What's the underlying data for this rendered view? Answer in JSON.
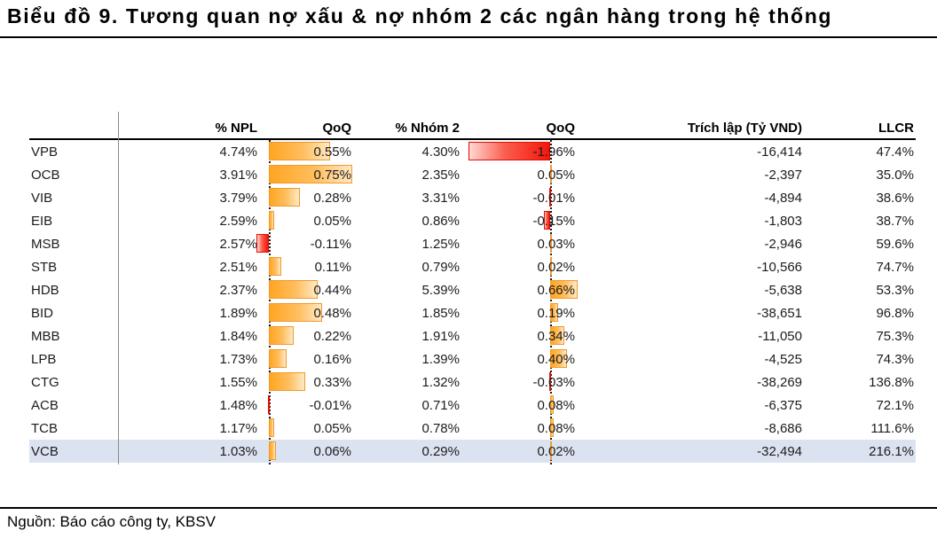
{
  "title": "Biểu đồ 9. Tương quan nợ xấu & nợ nhóm 2 các ngân hàng trong hệ thống",
  "source": "Nguồn: Báo cáo công ty, KBSV",
  "colors": {
    "positive_bar": "#FFA521",
    "positive_bar_border": "#F0992E",
    "negative_bar": "#F2170C",
    "negative_bar_border": "#E30D00",
    "highlight_row": "#DCE3F0"
  },
  "chart_data": {
    "type": "table",
    "title": "Biểu đồ 9. Tương quan nợ xấu & nợ nhóm 2 các ngân hàng trong hệ thống",
    "columns": [
      "",
      "% NPL",
      "QoQ",
      "% Nhóm 2",
      "QoQ",
      "Trích lập (Tỷ VND)",
      "LLCR"
    ],
    "notes": "QoQ columns contain in-cell data bars: positive = orange gradient bar extending right from dashed zero axis, negative = red gradient bar extending left. VCB row is highlighted.",
    "rows": [
      {
        "bank": "VPB",
        "npl": "4.74%",
        "npl_qoq": "0.55%",
        "npl_qoq_val": 0.55,
        "nhom2": "4.30%",
        "nhom2_qoq": "-1.96%",
        "nhom2_qoq_val": -1.96,
        "trich_lap": "-16,414",
        "llcr": "47.4%",
        "highlight": false
      },
      {
        "bank": "OCB",
        "npl": "3.91%",
        "npl_qoq": "0.75%",
        "npl_qoq_val": 0.75,
        "nhom2": "2.35%",
        "nhom2_qoq": "0.05%",
        "nhom2_qoq_val": 0.05,
        "trich_lap": "-2,397",
        "llcr": "35.0%",
        "highlight": false
      },
      {
        "bank": "VIB",
        "npl": "3.79%",
        "npl_qoq": "0.28%",
        "npl_qoq_val": 0.28,
        "nhom2": "3.31%",
        "nhom2_qoq": "-0.01%",
        "nhom2_qoq_val": -0.01,
        "trich_lap": "-4,894",
        "llcr": "38.6%",
        "highlight": false
      },
      {
        "bank": "EIB",
        "npl": "2.59%",
        "npl_qoq": "0.05%",
        "npl_qoq_val": 0.05,
        "nhom2": "0.86%",
        "nhom2_qoq": "-0.15%",
        "nhom2_qoq_val": -0.15,
        "trich_lap": "-1,803",
        "llcr": "38.7%",
        "highlight": false
      },
      {
        "bank": "MSB",
        "npl": "2.57%",
        "npl_qoq": "-0.11%",
        "npl_qoq_val": -0.11,
        "nhom2": "1.25%",
        "nhom2_qoq": "0.03%",
        "nhom2_qoq_val": 0.03,
        "trich_lap": "-2,946",
        "llcr": "59.6%",
        "highlight": false
      },
      {
        "bank": "STB",
        "npl": "2.51%",
        "npl_qoq": "0.11%",
        "npl_qoq_val": 0.11,
        "nhom2": "0.79%",
        "nhom2_qoq": "0.02%",
        "nhom2_qoq_val": 0.02,
        "trich_lap": "-10,566",
        "llcr": "74.7%",
        "highlight": false
      },
      {
        "bank": "HDB",
        "npl": "2.37%",
        "npl_qoq": "0.44%",
        "npl_qoq_val": 0.44,
        "nhom2": "5.39%",
        "nhom2_qoq": "0.66%",
        "nhom2_qoq_val": 0.66,
        "trich_lap": "-5,638",
        "llcr": "53.3%",
        "highlight": false
      },
      {
        "bank": "BID",
        "npl": "1.89%",
        "npl_qoq": "0.48%",
        "npl_qoq_val": 0.48,
        "nhom2": "1.85%",
        "nhom2_qoq": "0.19%",
        "nhom2_qoq_val": 0.19,
        "trich_lap": "-38,651",
        "llcr": "96.8%",
        "highlight": false
      },
      {
        "bank": "MBB",
        "npl": "1.84%",
        "npl_qoq": "0.22%",
        "npl_qoq_val": 0.22,
        "nhom2": "1.91%",
        "nhom2_qoq": "0.34%",
        "nhom2_qoq_val": 0.34,
        "trich_lap": "-11,050",
        "llcr": "75.3%",
        "highlight": false
      },
      {
        "bank": "LPB",
        "npl": "1.73%",
        "npl_qoq": "0.16%",
        "npl_qoq_val": 0.16,
        "nhom2": "1.39%",
        "nhom2_qoq": "0.40%",
        "nhom2_qoq_val": 0.4,
        "trich_lap": "-4,525",
        "llcr": "74.3%",
        "highlight": false
      },
      {
        "bank": "CTG",
        "npl": "1.55%",
        "npl_qoq": "0.33%",
        "npl_qoq_val": 0.33,
        "nhom2": "1.32%",
        "nhom2_qoq": "-0.03%",
        "nhom2_qoq_val": -0.03,
        "trich_lap": "-38,269",
        "llcr": "136.8%",
        "highlight": false
      },
      {
        "bank": "ACB",
        "npl": "1.48%",
        "npl_qoq": "-0.01%",
        "npl_qoq_val": -0.01,
        "nhom2": "0.71%",
        "nhom2_qoq": "0.08%",
        "nhom2_qoq_val": 0.08,
        "trich_lap": "-6,375",
        "llcr": "72.1%",
        "highlight": false
      },
      {
        "bank": "TCB",
        "npl": "1.17%",
        "npl_qoq": "0.05%",
        "npl_qoq_val": 0.05,
        "nhom2": "0.78%",
        "nhom2_qoq": "0.08%",
        "nhom2_qoq_val": 0.08,
        "trich_lap": "-8,686",
        "llcr": "111.6%",
        "highlight": false
      },
      {
        "bank": "VCB",
        "npl": "1.03%",
        "npl_qoq": "0.06%",
        "npl_qoq_val": 0.06,
        "nhom2": "0.29%",
        "nhom2_qoq": "0.02%",
        "nhom2_qoq_val": 0.02,
        "trich_lap": "-32,494",
        "llcr": "216.1%",
        "highlight": true
      }
    ]
  }
}
